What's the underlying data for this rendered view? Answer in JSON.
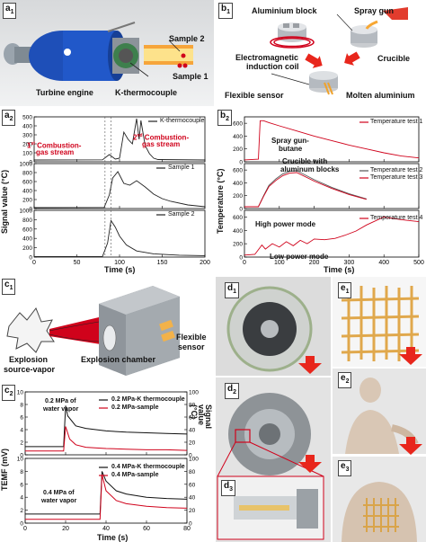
{
  "panels": {
    "a1": {
      "label": "a",
      "sub": "1",
      "sample2": "Sample 2",
      "sample1": "Sample 1",
      "engine": "Turbine engine",
      "thermo": "K-thermocouple"
    },
    "b1": {
      "label": "b",
      "sub": "1",
      "al_block": "Aluminium block",
      "spray": "Spray gun",
      "coil1": "Electromagnetic",
      "coil2": "induction coil",
      "crucible": "Crucible",
      "sensor": "Flexible sensor",
      "molten": "Molten aluminium"
    },
    "a2": {
      "label": "a",
      "sub": "2",
      "ylabel": "Signal value (°C)",
      "xlabel": "Time (s)",
      "legend1": "K-thermocouple",
      "legend2": "Sample 1",
      "legend3": "Sample 2",
      "ann1a": "1",
      "ann1b": "st",
      "ann1c": " Combustion-",
      "ann1d": "gas stream",
      "ann2a": "2",
      "ann2b": "nd",
      "ann2c": " Combustion-",
      "ann2d": "gas stream"
    },
    "b2": {
      "label": "b",
      "sub": "2",
      "ylabel": "Temperature (°C)",
      "xlabel": "Time (s)",
      "legend1": "Temperature test 1",
      "legend2": "Temperature test 2",
      "legend3": "Temperature test 3",
      "legend4": "Temperature test 4",
      "ann_spray1": "Spray gun-",
      "ann_spray2": "butane",
      "ann_cru1": "Crucible with",
      "ann_cru2": "aluminum blocks",
      "high": "High power mode",
      "low": "Low power mode"
    },
    "c1": {
      "label": "c",
      "sub": "1",
      "explosion1": "Explosion",
      "explosion2": "source-vapor",
      "chamber": "Explosion chamber",
      "flex1": "Flexible",
      "flex2": "sensor"
    },
    "c2": {
      "label": "c",
      "sub": "2",
      "ylabel_l": "TEMF (mV)",
      "ylabel_r": "Signal value (°C)",
      "xlabel": "Time (s)",
      "top_l1": "0.2 MPa-K thermocouple",
      "top_l2": "0.2 MPa-sample",
      "top_ann1": "0.2 MPa of",
      "top_ann2": "water vapor",
      "bot_l1": "0.4 MPa-K thermocouple",
      "bot_l2": "0.4 MPa-sample",
      "bot_ann1": "0.4 MPa of",
      "bot_ann2": "water vapor"
    },
    "d1": {
      "label": "d",
      "sub": "1"
    },
    "d2": {
      "label": "d",
      "sub": "2"
    },
    "d3": {
      "label": "d",
      "sub": "3"
    },
    "e1": {
      "label": "e",
      "sub": "1"
    },
    "e2": {
      "label": "e",
      "sub": "2"
    },
    "e3": {
      "label": "e",
      "sub": "3"
    }
  },
  "chart_data": [
    {
      "type": "line",
      "panel": "a2",
      "xlim": [
        0,
        200
      ],
      "xticks": [
        0,
        50,
        100,
        150,
        200
      ],
      "xlabel": "Time (s)",
      "ylabel": "Signal value (°C)",
      "subplots": [
        {
          "name": "K-thermocouple",
          "yticks": [
            0,
            100,
            200,
            300,
            400,
            500
          ],
          "ylim": [
            0,
            500
          ],
          "x": [
            0,
            80,
            88,
            95,
            100,
            105,
            110,
            115,
            120,
            123,
            125,
            130,
            135,
            140,
            145,
            200
          ],
          "y": [
            20,
            22,
            80,
            30,
            40,
            330,
            250,
            200,
            480,
            250,
            460,
            180,
            90,
            40,
            25,
            20
          ]
        },
        {
          "name": "Sample 1",
          "yticks": [
            0,
            200,
            400,
            600,
            800,
            1000
          ],
          "ylim": [
            0,
            1000
          ],
          "x": [
            0,
            82,
            88,
            92,
            98,
            105,
            112,
            120,
            130,
            140,
            150,
            160,
            180,
            200
          ],
          "y": [
            20,
            25,
            300,
            680,
            820,
            560,
            520,
            620,
            480,
            320,
            220,
            160,
            80,
            40
          ]
        },
        {
          "name": "Sample 2",
          "yticks": [
            0,
            200,
            400,
            600,
            800,
            1000
          ],
          "ylim": [
            0,
            1000
          ],
          "x": [
            0,
            80,
            86,
            90,
            95,
            100,
            108,
            120,
            140,
            170,
            200
          ],
          "y": [
            10,
            12,
            300,
            780,
            640,
            450,
            260,
            130,
            70,
            40,
            30
          ]
        }
      ]
    },
    {
      "type": "line",
      "panel": "b2",
      "xlim": [
        0,
        500
      ],
      "xticks": [
        0,
        100,
        200,
        300,
        400,
        500
      ],
      "xlabel": "Time (s)",
      "ylabel": "Temperature (°C)",
      "subplots": [
        {
          "name": "Temperature test 1",
          "yticks": [
            0,
            200,
            400,
            600
          ],
          "ylim": [
            0,
            700
          ],
          "x": [
            0,
            40,
            45,
            55,
            70,
            100,
            150,
            200,
            250,
            300,
            350,
            400,
            450,
            500
          ],
          "y": [
            30,
            40,
            640,
            640,
            610,
            560,
            480,
            400,
            330,
            260,
            200,
            140,
            90,
            60
          ]
        },
        {
          "names": [
            "Temperature test 2",
            "Temperature test 3"
          ],
          "yticks": [
            0,
            200,
            400,
            600
          ],
          "ylim": [
            0,
            700
          ],
          "x": [
            0,
            40,
            55,
            70,
            90,
            110,
            130,
            150,
            200,
            250,
            300,
            350
          ],
          "y": [
            30,
            30,
            200,
            360,
            460,
            540,
            580,
            590,
            450,
            330,
            230,
            150
          ]
        },
        {
          "name": "Temperature test 4",
          "yticks": [
            0,
            200,
            400,
            600
          ],
          "ylim": [
            0,
            700
          ],
          "x": [
            0,
            30,
            50,
            60,
            80,
            100,
            120,
            140,
            160,
            180,
            200,
            230,
            260,
            290,
            320,
            350,
            400,
            450,
            500
          ],
          "y": [
            30,
            40,
            180,
            120,
            200,
            150,
            230,
            170,
            250,
            200,
            270,
            260,
            280,
            330,
            390,
            480,
            600,
            560,
            530
          ]
        }
      ]
    },
    {
      "type": "line",
      "panel": "c2",
      "xlim": [
        0,
        80
      ],
      "xticks": [
        0,
        20,
        40,
        60,
        80
      ],
      "xlabel": "Time (s)",
      "ylabel": "TEMF (mV)",
      "ylabel_right": "Signal value (°C)",
      "subplots": [
        {
          "name": "0.2 MPa",
          "yticks_left": [
            0,
            2,
            4,
            6,
            8,
            10
          ],
          "yticks_right": [
            0,
            20,
            40,
            60,
            80,
            100
          ],
          "series": [
            {
              "name": "0.2 MPa-K thermocouple",
              "x": [
                0,
                19,
                20,
                21,
                25,
                30,
                40,
                50,
                60,
                70,
                80
              ],
              "y": [
                1.3,
                1.3,
                7.8,
                6.2,
                4.6,
                4.2,
                3.8,
                3.6,
                3.5,
                3.4,
                3.3
              ]
            },
            {
              "name": "0.2 MPa-sample",
              "x": [
                0,
                19,
                20,
                22,
                25,
                30,
                40,
                50,
                60,
                70,
                80
              ],
              "y": [
                0.6,
                0.6,
                4.5,
                2.5,
                1.6,
                1.2,
                1.0,
                0.9,
                0.8,
                0.8,
                0.7
              ]
            }
          ]
        },
        {
          "name": "0.4 MPa",
          "yticks_left": [
            0,
            2,
            4,
            6,
            8,
            10
          ],
          "yticks_right": [
            0,
            20,
            40,
            60,
            80,
            100
          ],
          "series": [
            {
              "name": "0.4 MPa-K thermocouple",
              "x": [
                0,
                37,
                38,
                40,
                45,
                50,
                60,
                70,
                80
              ],
              "y": [
                1.4,
                1.4,
                8.0,
                6.5,
                5.0,
                4.5,
                4.0,
                3.8,
                3.7
              ]
            },
            {
              "name": "0.4 MPa-sample",
              "x": [
                0,
                37,
                38,
                40,
                45,
                50,
                60,
                70,
                80
              ],
              "y": [
                0.6,
                0.6,
                7.5,
                5.0,
                3.5,
                3.0,
                2.6,
                2.4,
                2.3
              ]
            }
          ]
        }
      ]
    }
  ]
}
